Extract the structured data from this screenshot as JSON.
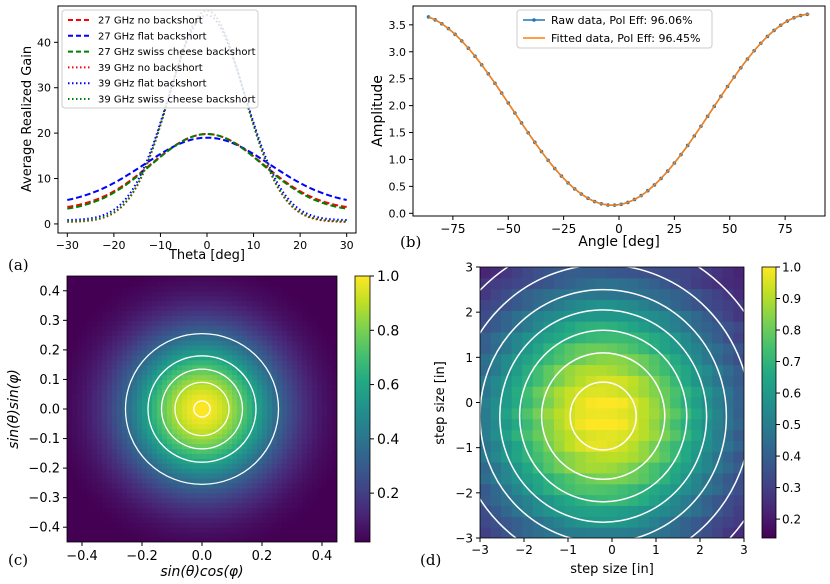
{
  "panel_labels": [
    "(a)",
    "(b)",
    "(c)",
    "(d)"
  ],
  "chart_data": [
    {
      "type": "line",
      "panel": "a",
      "title": "",
      "xlabel": "Theta [deg]",
      "ylabel": "Average Realized Gain",
      "xlim": [
        -32,
        32
      ],
      "ylim": [
        -2,
        48
      ],
      "xticks": [
        -30,
        -20,
        -10,
        0,
        10,
        20,
        30
      ],
      "yticks": [
        0,
        10,
        20,
        30,
        40
      ],
      "legend_position": "top-left",
      "series": [
        {
          "name": "27 GHz no backshort",
          "color": "#ff0000",
          "style": "dashed",
          "peak": 19.8,
          "edge": 3.0,
          "width": 12.0
        },
        {
          "name": "27 GHz flat backshort",
          "color": "#0000ff",
          "style": "dashed",
          "peak": 19.0,
          "edge": 4.0,
          "width": 13.5
        },
        {
          "name": "27 GHz swiss cheese backshort",
          "color": "#008000",
          "style": "dashed",
          "peak": 19.8,
          "edge": 2.6,
          "width": 12.0
        },
        {
          "name": "39 GHz no backshort",
          "color": "#ff0000",
          "style": "dotted",
          "peak": 47.0,
          "edge": 0.4,
          "width": 8.0
        },
        {
          "name": "39 GHz flat backshort",
          "color": "#0000ff",
          "style": "dotted",
          "peak": 46.0,
          "edge": 0.8,
          "width": 8.2
        },
        {
          "name": "39 GHz swiss cheese backshort",
          "color": "#008000",
          "style": "dotted",
          "peak": 47.0,
          "edge": 0.5,
          "width": 8.0
        }
      ]
    },
    {
      "type": "line",
      "panel": "b",
      "title": "",
      "xlabel": "Angle [deg]",
      "ylabel": "Amplitude",
      "xlim": [
        -93,
        93
      ],
      "ylim": [
        -0.05,
        3.85
      ],
      "xticks": [
        -75,
        -50,
        -25,
        0,
        25,
        50,
        75
      ],
      "yticks": [
        0.0,
        0.5,
        1.0,
        1.5,
        2.0,
        2.5,
        3.0,
        3.5
      ],
      "xrange": [
        -86,
        86
      ],
      "point_step": 3,
      "model": {
        "center": 1.925,
        "amplitude": 1.775,
        "phase_deg": -3
      },
      "legend_position": "top-center",
      "series": [
        {
          "name": "Raw data, Pol Eff: 96.06%",
          "color": "#1f77b4",
          "style": "line-marker"
        },
        {
          "name": "Fitted data, Pol Eff: 96.45%",
          "color": "#ff7f0e",
          "style": "line"
        }
      ]
    },
    {
      "type": "heatmap",
      "panel": "c",
      "title": "",
      "xlabel": "sin(θ)cos(φ)",
      "ylabel": "sin(θ)sin(φ)",
      "xlim": [
        -0.45,
        0.45
      ],
      "ylim": [
        -0.45,
        0.45
      ],
      "xticks": [
        -0.4,
        -0.2,
        0.0,
        0.2,
        0.4
      ],
      "yticks": [
        -0.4,
        -0.3,
        -0.2,
        -0.1,
        0.0,
        0.1,
        0.2,
        0.3,
        0.4
      ],
      "beam_sigma": 0.2,
      "contour_radii": [
        0.027,
        0.09,
        0.135,
        0.18,
        0.255
      ],
      "colorbar": {
        "min": 0.02,
        "max": 1.0,
        "ticks": [
          0.2,
          0.4,
          0.6,
          0.8,
          1.0
        ]
      }
    },
    {
      "type": "heatmap",
      "panel": "d",
      "title": "",
      "xlabel": "step size [in]",
      "ylabel": "step size [in]",
      "xlim": [
        -3,
        3
      ],
      "ylim": [
        -3,
        3
      ],
      "xticks": [
        -3,
        -2,
        -1,
        0,
        1,
        2,
        3
      ],
      "yticks": [
        -3,
        -2,
        -1,
        0,
        1,
        2,
        3
      ],
      "grid_cells": 25,
      "center": [
        -0.2,
        -0.3
      ],
      "beam_sigma": 2.8,
      "contour_radii": [
        0.75,
        1.4,
        1.9,
        2.35,
        2.8,
        3.35,
        3.95
      ],
      "colorbar": {
        "min": 0.14,
        "max": 1.0,
        "ticks": [
          0.2,
          0.3,
          0.4,
          0.5,
          0.6,
          0.7,
          0.8,
          0.9,
          1.0
        ]
      }
    }
  ]
}
